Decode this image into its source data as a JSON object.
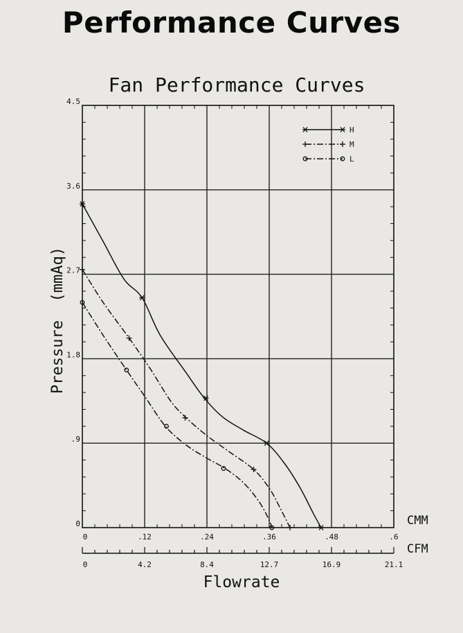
{
  "page": {
    "heading": "Performance Curves"
  },
  "chart_data": {
    "type": "line",
    "title": "Fan Performance Curves",
    "xlabel": "Flowrate",
    "ylabel": "Pressure  (mmAq)",
    "x_unit_primary": "CMM",
    "x_unit_secondary": "CFM",
    "xlim": [
      0,
      0.6
    ],
    "ylim": [
      0,
      4.5
    ],
    "x_ticks": [
      {
        "value": 0,
        "label": "0"
      },
      {
        "value": 0.12,
        "label": ".12"
      },
      {
        "value": 0.24,
        "label": ".24"
      },
      {
        "value": 0.36,
        "label": ".36"
      },
      {
        "value": 0.48,
        "label": ".48"
      },
      {
        "value": 0.6,
        "label": ".6"
      }
    ],
    "cfm_ticks": [
      {
        "value": 0,
        "label": "0"
      },
      {
        "value": 0.12,
        "label": "4.2"
      },
      {
        "value": 0.24,
        "label": "8.4"
      },
      {
        "value": 0.36,
        "label": "12.7"
      },
      {
        "value": 0.48,
        "label": "16.9"
      },
      {
        "value": 0.6,
        "label": "21.1"
      }
    ],
    "y_ticks": [
      {
        "value": 0,
        "label": "0"
      },
      {
        "value": 0.9,
        "label": ".9"
      },
      {
        "value": 1.8,
        "label": "1.8"
      },
      {
        "value": 2.7,
        "label": "2.7"
      },
      {
        "value": 3.6,
        "label": "3.6"
      },
      {
        "value": 4.5,
        "label": "4.5"
      }
    ],
    "grid": true,
    "legend_position": "top-right",
    "series": [
      {
        "name": "H",
        "marker": "asterisk",
        "dash": "solid",
        "curve": [
          [
            0,
            3.45
          ],
          [
            0.04,
            3.05
          ],
          [
            0.08,
            2.65
          ],
          [
            0.115,
            2.45
          ],
          [
            0.15,
            2.05
          ],
          [
            0.2,
            1.65
          ],
          [
            0.235,
            1.38
          ],
          [
            0.27,
            1.18
          ],
          [
            0.31,
            1.04
          ],
          [
            0.355,
            0.9
          ],
          [
            0.39,
            0.68
          ],
          [
            0.42,
            0.42
          ],
          [
            0.445,
            0.15
          ],
          [
            0.46,
            0
          ]
        ],
        "markers": [
          [
            0,
            3.45
          ],
          [
            0.115,
            2.45
          ],
          [
            0.238,
            1.38
          ],
          [
            0.355,
            0.9
          ],
          [
            0.46,
            0
          ]
        ]
      },
      {
        "name": "M",
        "marker": "plus",
        "dash": "dashdot",
        "curve": [
          [
            0,
            2.75
          ],
          [
            0.04,
            2.4
          ],
          [
            0.09,
            2.02
          ],
          [
            0.13,
            1.7
          ],
          [
            0.17,
            1.35
          ],
          [
            0.2,
            1.17
          ],
          [
            0.24,
            0.98
          ],
          [
            0.28,
            0.82
          ],
          [
            0.33,
            0.62
          ],
          [
            0.36,
            0.42
          ],
          [
            0.38,
            0.22
          ],
          [
            0.4,
            0
          ]
        ],
        "markers": [
          [
            0,
            2.75
          ],
          [
            0.09,
            2.02
          ],
          [
            0.198,
            1.17
          ],
          [
            0.33,
            0.62
          ],
          [
            0.4,
            0
          ]
        ]
      },
      {
        "name": "L",
        "marker": "circle",
        "dash": "dashdot",
        "curve": [
          [
            0,
            2.4
          ],
          [
            0.04,
            2.05
          ],
          [
            0.085,
            1.68
          ],
          [
            0.12,
            1.4
          ],
          [
            0.16,
            1.08
          ],
          [
            0.2,
            0.88
          ],
          [
            0.24,
            0.74
          ],
          [
            0.275,
            0.63
          ],
          [
            0.31,
            0.48
          ],
          [
            0.34,
            0.28
          ],
          [
            0.36,
            0.08
          ],
          [
            0.365,
            0
          ]
        ],
        "markers": [
          [
            0,
            2.4
          ],
          [
            0.085,
            1.68
          ],
          [
            0.162,
            1.08
          ],
          [
            0.272,
            0.63
          ],
          [
            0.365,
            0
          ]
        ]
      }
    ]
  }
}
